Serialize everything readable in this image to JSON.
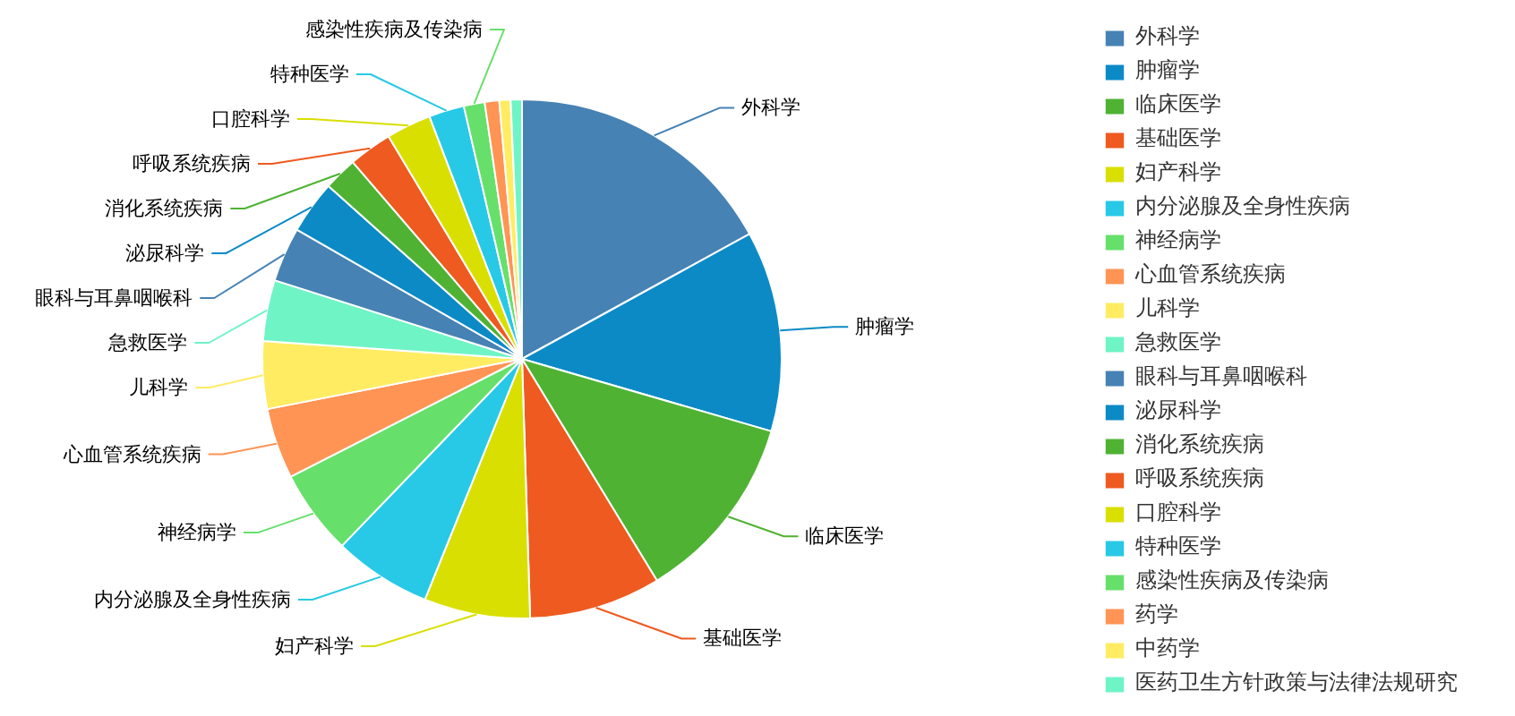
{
  "chart_data": {
    "type": "pie",
    "legend": "right",
    "categories": [
      "外科学",
      "肿瘤学",
      "临床医学",
      "基础医学",
      "妇产科学",
      "内分泌腺及全身性疾病",
      "神经病学",
      "心血管系统疾病",
      "儿科学",
      "急救医学",
      "眼科与耳鼻咽喉科",
      "泌尿科学",
      "消化系统疾病",
      "呼吸系统疾病",
      "口腔科学",
      "特种医学",
      "感染性疾病及传染病",
      "药学",
      "中药学",
      "医药卫生方针政策与法律法规研究"
    ],
    "values": [
      17.0,
      12.5,
      11.8,
      8.2,
      6.6,
      6.1,
      5.3,
      4.4,
      4.2,
      3.8,
      3.4,
      3.3,
      2.1,
      2.7,
      2.8,
      2.2,
      1.3,
      0.9,
      0.7,
      0.7
    ],
    "colors": [
      "#4682b4",
      "#0b8ac6",
      "#4fb233",
      "#ee5a1f",
      "#d9df00",
      "#27c9e6",
      "#66e06b",
      "#ff9455",
      "#ffec62",
      "#6ff4c6",
      "#4682b4",
      "#0b8ac6",
      "#4fb233",
      "#ee5a1f",
      "#d9df00",
      "#27c9e6",
      "#66e06b",
      "#ff9455",
      "#ffec62",
      "#6ff4c6"
    ]
  }
}
